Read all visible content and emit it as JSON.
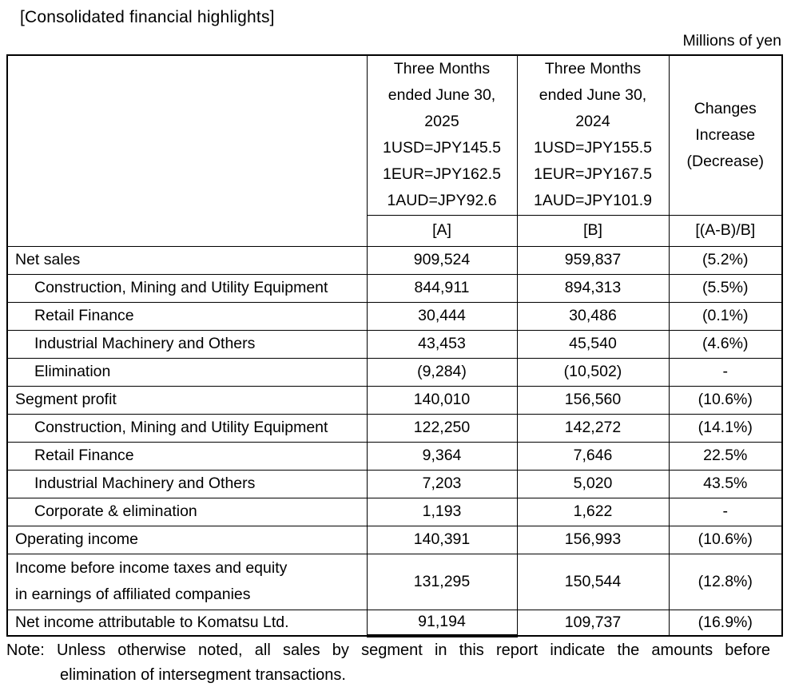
{
  "page": {
    "title": "[Consolidated financial highlights]",
    "unit_label": "Millions of yen",
    "note": {
      "line1": "Note: Unless otherwise noted, all sales by segment in this report indicate the amounts before",
      "line2": "elimination of intersegment transactions."
    }
  },
  "colors": {
    "text": "#000000",
    "border": "#000000",
    "background": "#ffffff"
  },
  "table": {
    "columns": [
      {
        "id": "A",
        "header_lines": [
          "Three Months",
          "ended June 30,",
          "2025",
          "1USD=JPY145.5",
          "1EUR=JPY162.5",
          "1AUD=JPY92.6"
        ],
        "tag": "[A]"
      },
      {
        "id": "B",
        "header_lines": [
          "Three Months",
          "ended June 30,",
          "2024",
          "1USD=JPY155.5",
          "1EUR=JPY167.5",
          "1AUD=JPY101.9"
        ],
        "tag": "[B]"
      },
      {
        "id": "Changes",
        "header_lines": [
          "Changes",
          "Increase",
          "(Decrease)"
        ],
        "tag": "[(A-B)/B]"
      }
    ],
    "rows": [
      {
        "label": "Net sales",
        "indent": false,
        "a": "909,524",
        "b": "959,837",
        "change": "(5.2%)"
      },
      {
        "label": "Construction, Mining and Utility Equipment",
        "indent": true,
        "a": "844,911",
        "b": "894,313",
        "change": "(5.5%)"
      },
      {
        "label": "Retail Finance",
        "indent": true,
        "a": "30,444",
        "b": "30,486",
        "change": "(0.1%)"
      },
      {
        "label": "Industrial Machinery and Others",
        "indent": true,
        "a": "43,453",
        "b": "45,540",
        "change": "(4.6%)"
      },
      {
        "label": "Elimination",
        "indent": true,
        "a": "(9,284)",
        "b": "(10,502)",
        "change": "-"
      },
      {
        "label": "Segment profit",
        "indent": false,
        "a": "140,010",
        "b": "156,560",
        "change": "(10.6%)"
      },
      {
        "label": "Construction, Mining and Utility Equipment",
        "indent": true,
        "a": "122,250",
        "b": "142,272",
        "change": "(14.1%)"
      },
      {
        "label": "Retail Finance",
        "indent": true,
        "a": "9,364",
        "b": "7,646",
        "change": "22.5%"
      },
      {
        "label": "Industrial Machinery and Others",
        "indent": true,
        "a": "7,203",
        "b": "5,020",
        "change": "43.5%"
      },
      {
        "label": "Corporate & elimination",
        "indent": true,
        "a": "1,193",
        "b": "1,622",
        "change": "-"
      },
      {
        "label": "Operating income",
        "indent": false,
        "a": "140,391",
        "b": "156,993",
        "change": "(10.6%)"
      },
      {
        "label_lines": [
          "Income before income taxes and equity",
          "in earnings of affiliated companies"
        ],
        "indent": false,
        "a": "131,295",
        "b": "150,544",
        "change": "(12.8%)"
      },
      {
        "label": "Net income attributable to Komatsu Ltd.",
        "indent": false,
        "a": "91,194",
        "b": "109,737",
        "change": "(16.9%)"
      }
    ]
  }
}
